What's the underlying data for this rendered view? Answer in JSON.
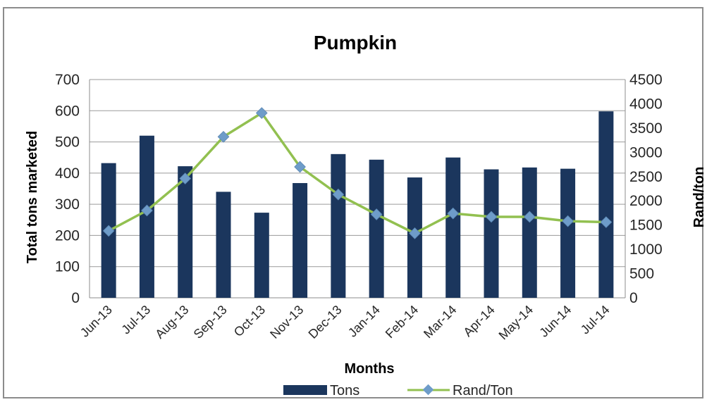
{
  "chart_data": {
    "type": "bar",
    "title": "Pumpkin",
    "xlabel": "Months",
    "ylabel": "Total tons marketed",
    "y2label": "Rand/ton",
    "categories": [
      "Jun-13",
      "Jul-13",
      "Aug-13",
      "Sep-13",
      "Oct-13",
      "Nov-13",
      "Dec-13",
      "Jan-14",
      "Feb-14",
      "Mar-14",
      "Apr-14",
      "May-14",
      "Jun-14",
      "Jul-14"
    ],
    "ylim": [
      0,
      700
    ],
    "yticks": [
      "0",
      "100",
      "200",
      "300",
      "400",
      "500",
      "600",
      "700"
    ],
    "y2lim": [
      0,
      4500
    ],
    "y2ticks": [
      "0",
      "500",
      "1000",
      "1500",
      "2000",
      "2500",
      "3000",
      "3500",
      "4000",
      "4500"
    ],
    "grid": true,
    "legend_position": "bottom",
    "series": [
      {
        "name": "Tons",
        "type": "bar",
        "axis": "left",
        "color": "#1b365d",
        "values": [
          432,
          520,
          422,
          340,
          273,
          368,
          461,
          443,
          386,
          450,
          412,
          418,
          414,
          598
        ]
      },
      {
        "name": "Rand/Ton",
        "type": "line",
        "axis": "right",
        "color": "#92c050",
        "marker_color": "#6e9cc9",
        "values": [
          1380,
          1800,
          2460,
          3320,
          3810,
          2700,
          2130,
          1720,
          1330,
          1740,
          1670,
          1670,
          1580,
          1560
        ]
      }
    ]
  }
}
